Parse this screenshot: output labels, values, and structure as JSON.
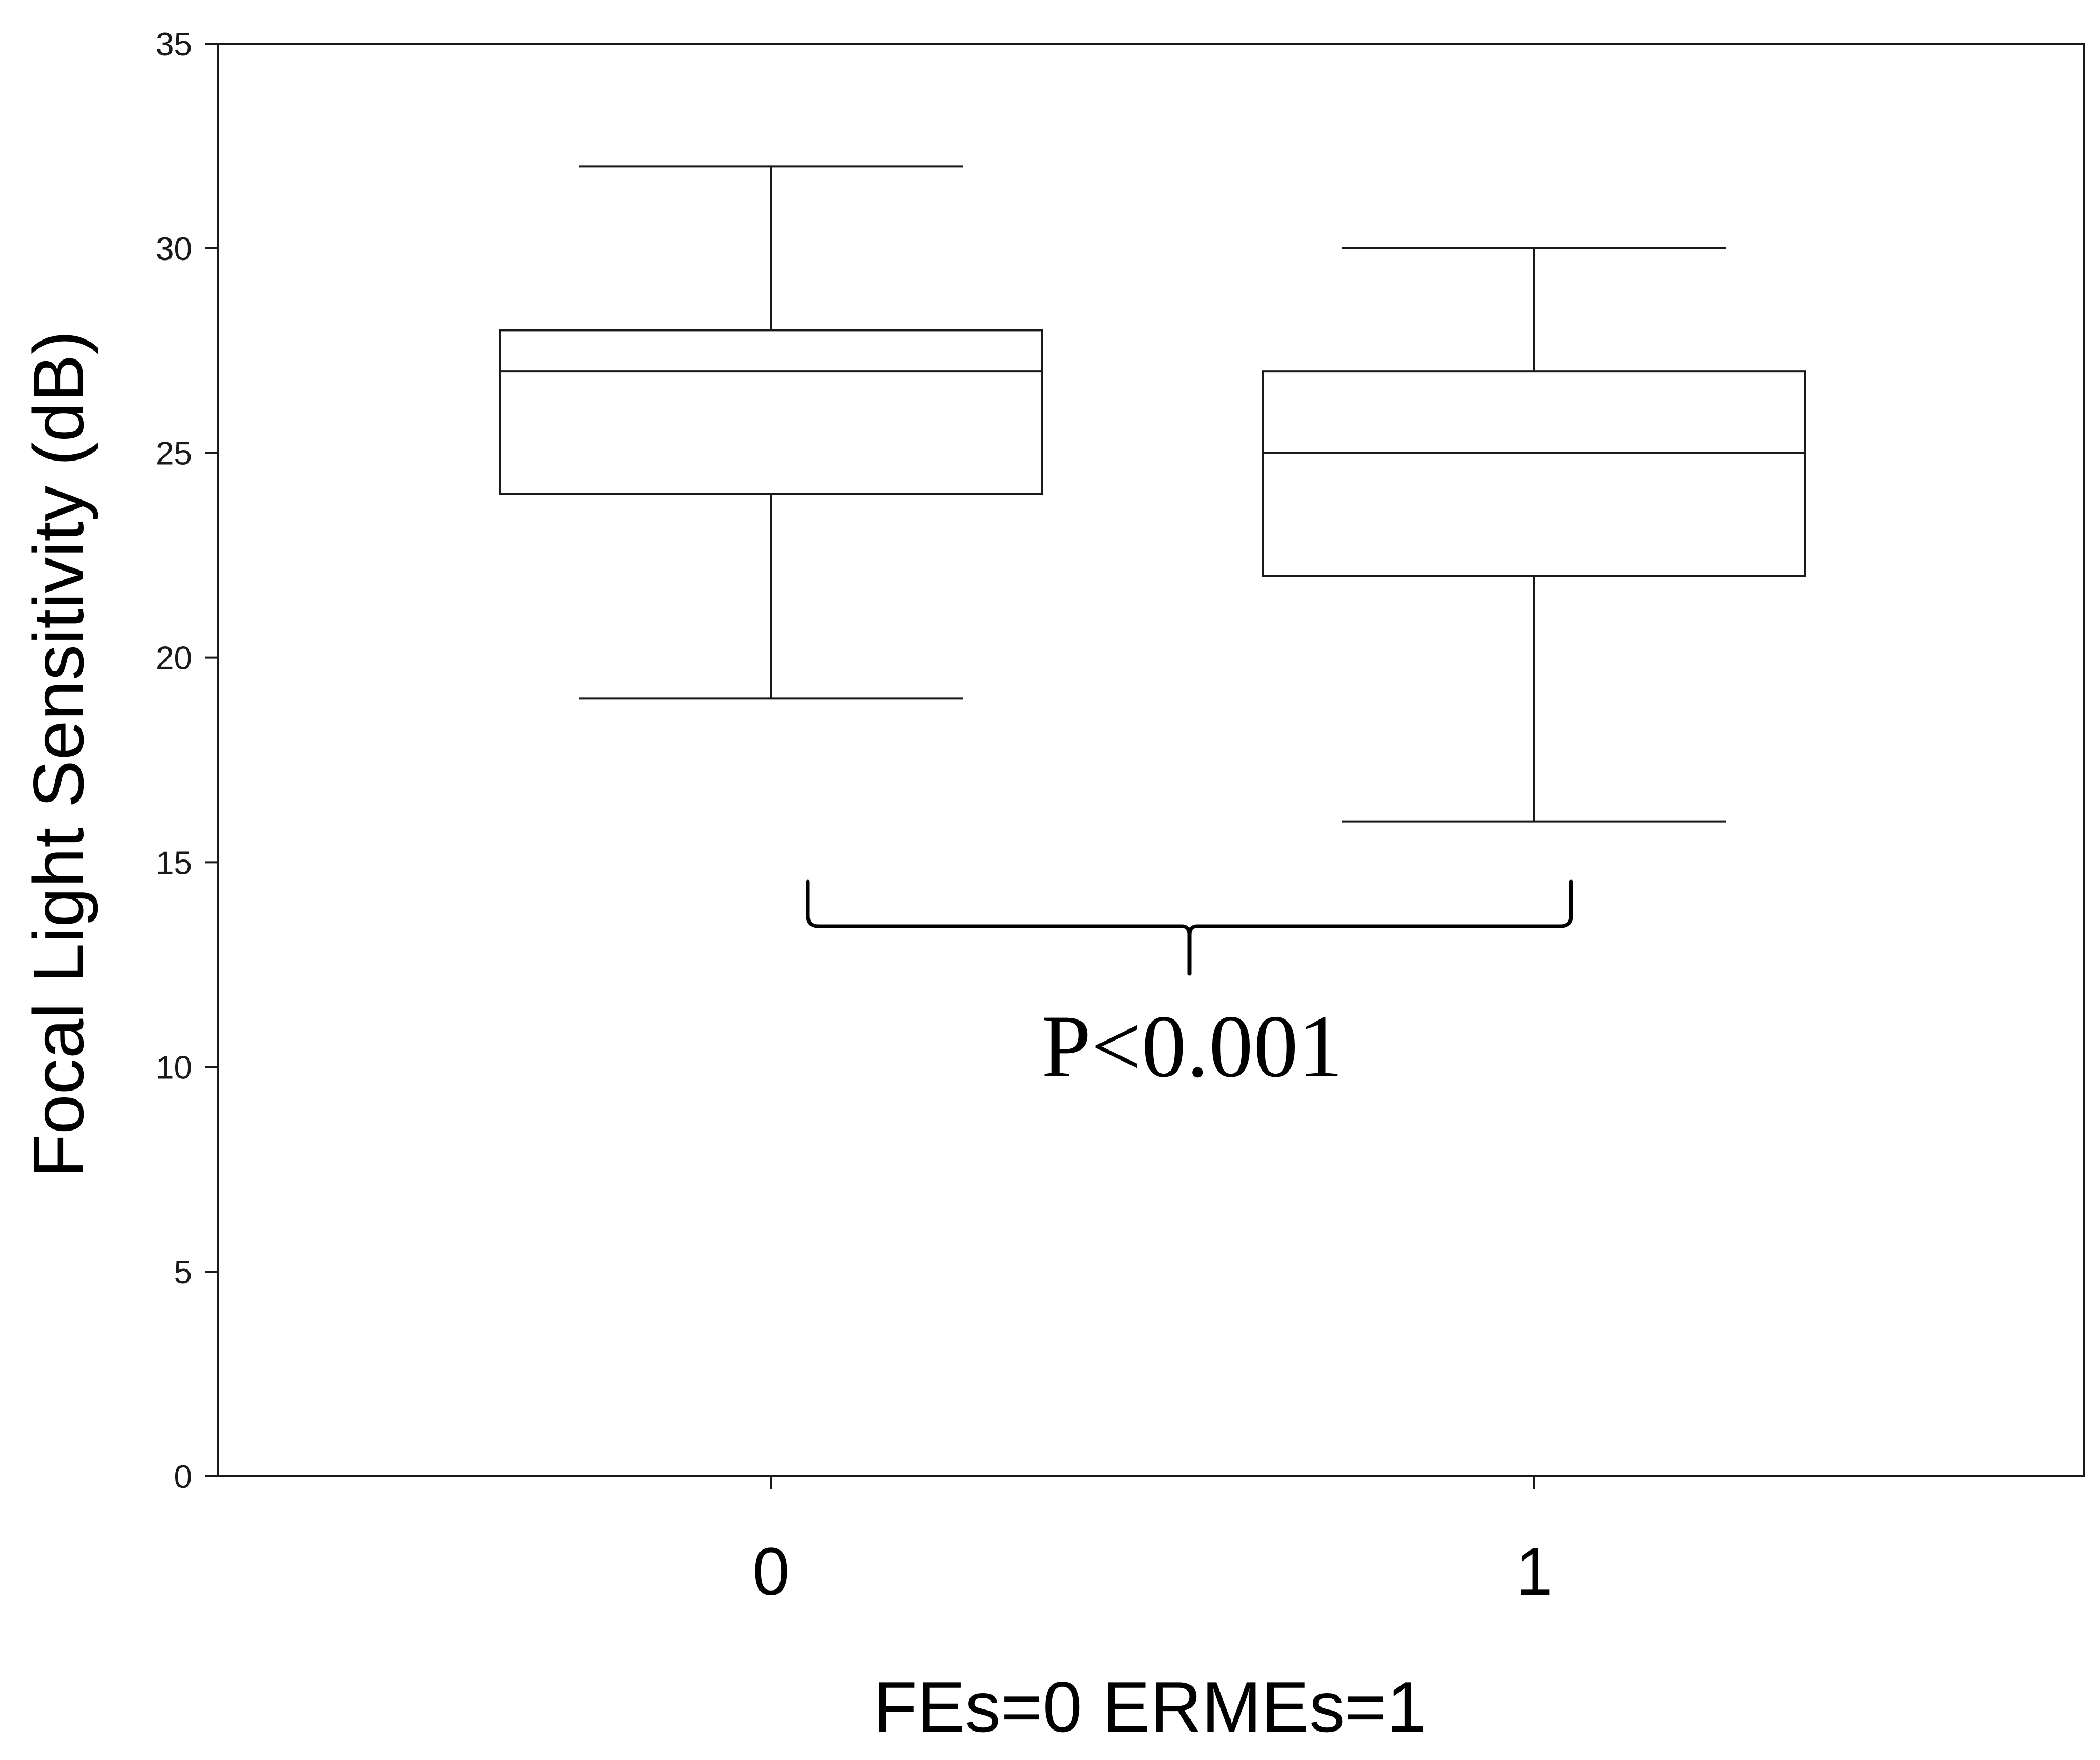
{
  "chart_data": {
    "type": "box",
    "xlabel": "FEs=0 ERMEs=1",
    "ylabel": "Focal Light Sensitivity (dB)",
    "ylim": [
      0,
      35
    ],
    "yticks": [
      0,
      5,
      10,
      15,
      20,
      25,
      30,
      35
    ],
    "categories": [
      "0",
      "1"
    ],
    "boxes": [
      {
        "category": "0",
        "min": 19,
        "q1": 24,
        "median": 27,
        "q3": 28,
        "max": 32
      },
      {
        "category": "1",
        "min": 16,
        "q1": 22,
        "median": 25,
        "q3": 27,
        "max": 30
      }
    ],
    "annotation": {
      "text": "P<0.001",
      "spans": [
        "0",
        "1"
      ]
    },
    "grid": false,
    "colors": {
      "stroke": "#1a1a1a",
      "box_fill": "#ffffff"
    }
  }
}
